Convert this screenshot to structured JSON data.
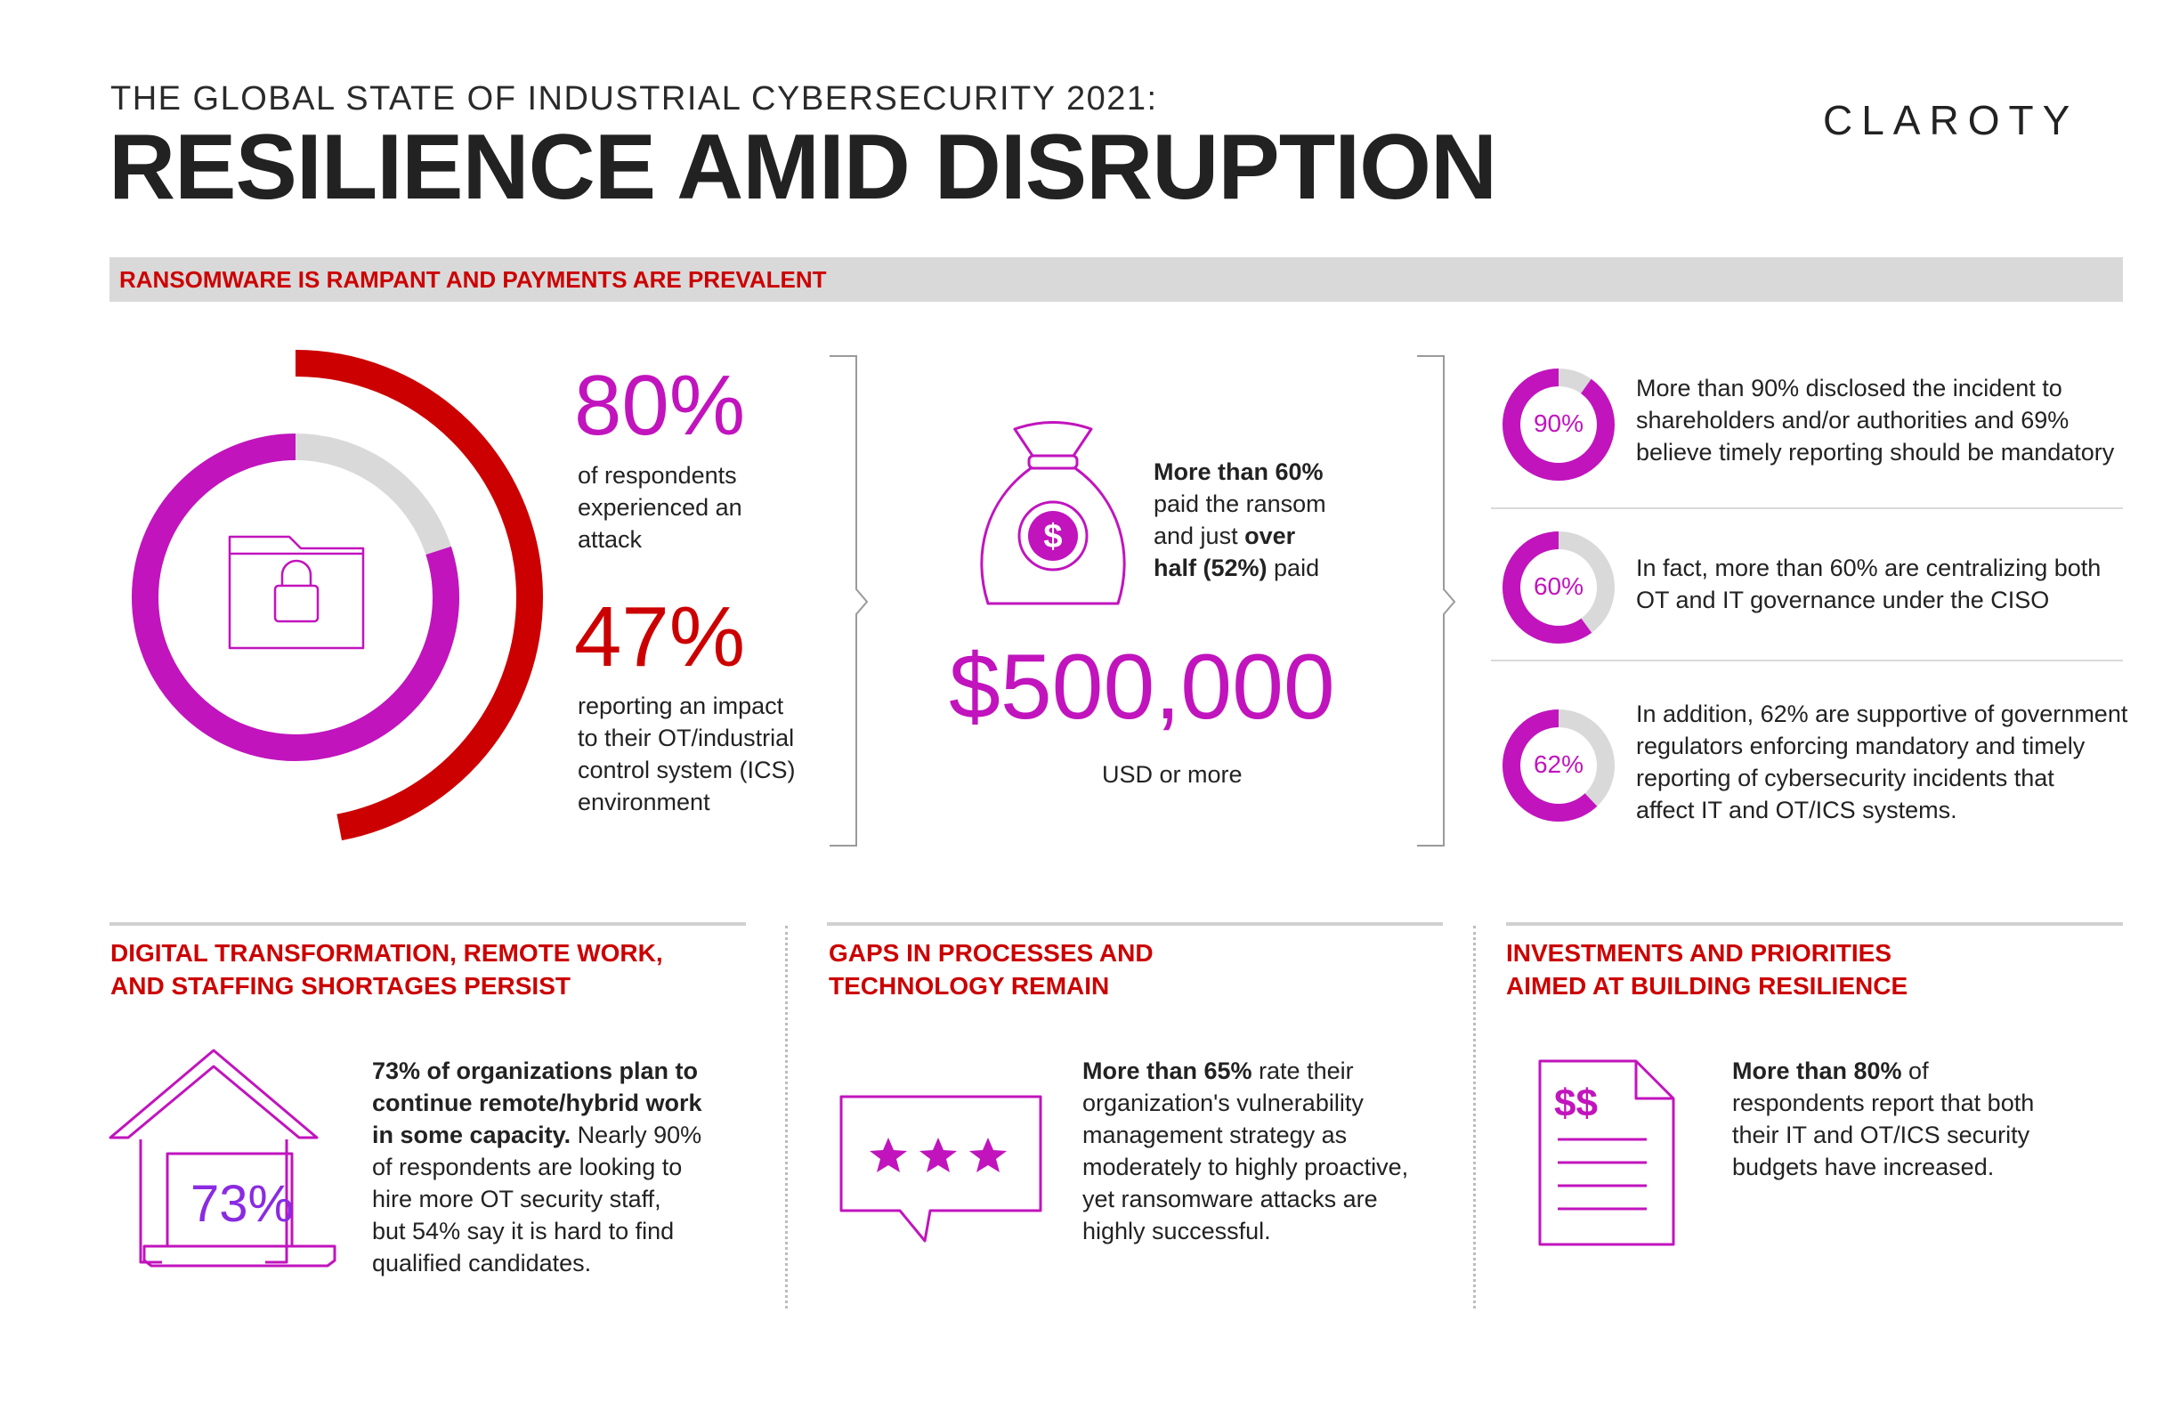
{
  "header": {
    "subtitle": "THE GLOBAL STATE OF INDUSTRIAL CYBERSECURITY 2021:",
    "title": "RESILIENCE AMID DISRUPTION",
    "logo": "CLAROTY"
  },
  "banner": {
    "label": "RANSOMWARE IS RAMPANT AND PAYMENTS ARE PREVALENT"
  },
  "colors": {
    "magenta": "#c114bd",
    "red": "#cc0000",
    "grey": "#d9d9d9",
    "dark": "#222222"
  },
  "attack": {
    "stat1": {
      "value": "80%",
      "percent": 80,
      "lines": [
        "of respondents",
        "experienced an",
        "attack"
      ]
    },
    "stat2": {
      "value": "47%",
      "percent": 47,
      "lines": [
        "reporting an impact",
        "to their OT/industrial",
        "control system (ICS)",
        "environment"
      ]
    },
    "icon": "locked-folder-icon"
  },
  "ransom": {
    "icon": "money-bag-icon",
    "lead_bold": "More than 60%",
    "line2": "paid the ransom",
    "line3_pre": "and just ",
    "line3_bold": "over",
    "line4_bold": "half (52%)",
    "line4_post": " paid",
    "amount": "$500,000",
    "amount_caption": "USD or more"
  },
  "disclosure": [
    {
      "value": "90%",
      "percent": 90,
      "lines": [
        "More than 90% disclosed the incident to",
        "shareholders and/or authorities and 69%",
        "believe timely reporting should be mandatory"
      ]
    },
    {
      "value": "60%",
      "percent": 60,
      "lines": [
        "In fact, more than 60% are centralizing both",
        "OT and IT governance under the CISO"
      ]
    },
    {
      "value": "62%",
      "percent": 62,
      "lines": [
        "In addition, 62% are supportive of government",
        "regulators enforcing mandatory and timely",
        "reporting of cybersecurity incidents that",
        "affect IT and OT/ICS systems."
      ]
    }
  ],
  "sections": [
    {
      "heading": [
        "DIGITAL TRANSFORMATION, REMOTE WORK,",
        "AND STAFFING SHORTAGES PERSIST"
      ],
      "icon": "house-laptop-icon",
      "icon_value": "73%",
      "bold_lines": [
        "73% of organizations plan to",
        "continue remote/hybrid work",
        "in some capacity."
      ],
      "tail_first": " Nearly 90%",
      "lines": [
        "of respondents are looking to",
        "hire more OT security staff,",
        "but 54% say it is hard to find",
        "qualified candidates."
      ]
    },
    {
      "heading": [
        "GAPS IN PROCESSES AND",
        "TECHNOLOGY REMAIN"
      ],
      "icon": "rating-bubble-icon",
      "bold": "More than 65%",
      "first_tail": " rate their",
      "lines": [
        "organization's vulnerability",
        "management strategy as",
        "moderately to highly proactive,",
        "yet ransomware attacks are",
        "highly successful."
      ]
    },
    {
      "heading": [
        "INVESTMENTS AND PRIORITIES",
        "AIMED AT BUILDING RESILIENCE"
      ],
      "icon": "budget-document-icon",
      "icon_value": "$$",
      "bold": "More than 80%",
      "first_tail": " of",
      "lines": [
        "respondents report that both",
        "their IT and OT/ICS security",
        "budgets have increased."
      ]
    }
  ]
}
